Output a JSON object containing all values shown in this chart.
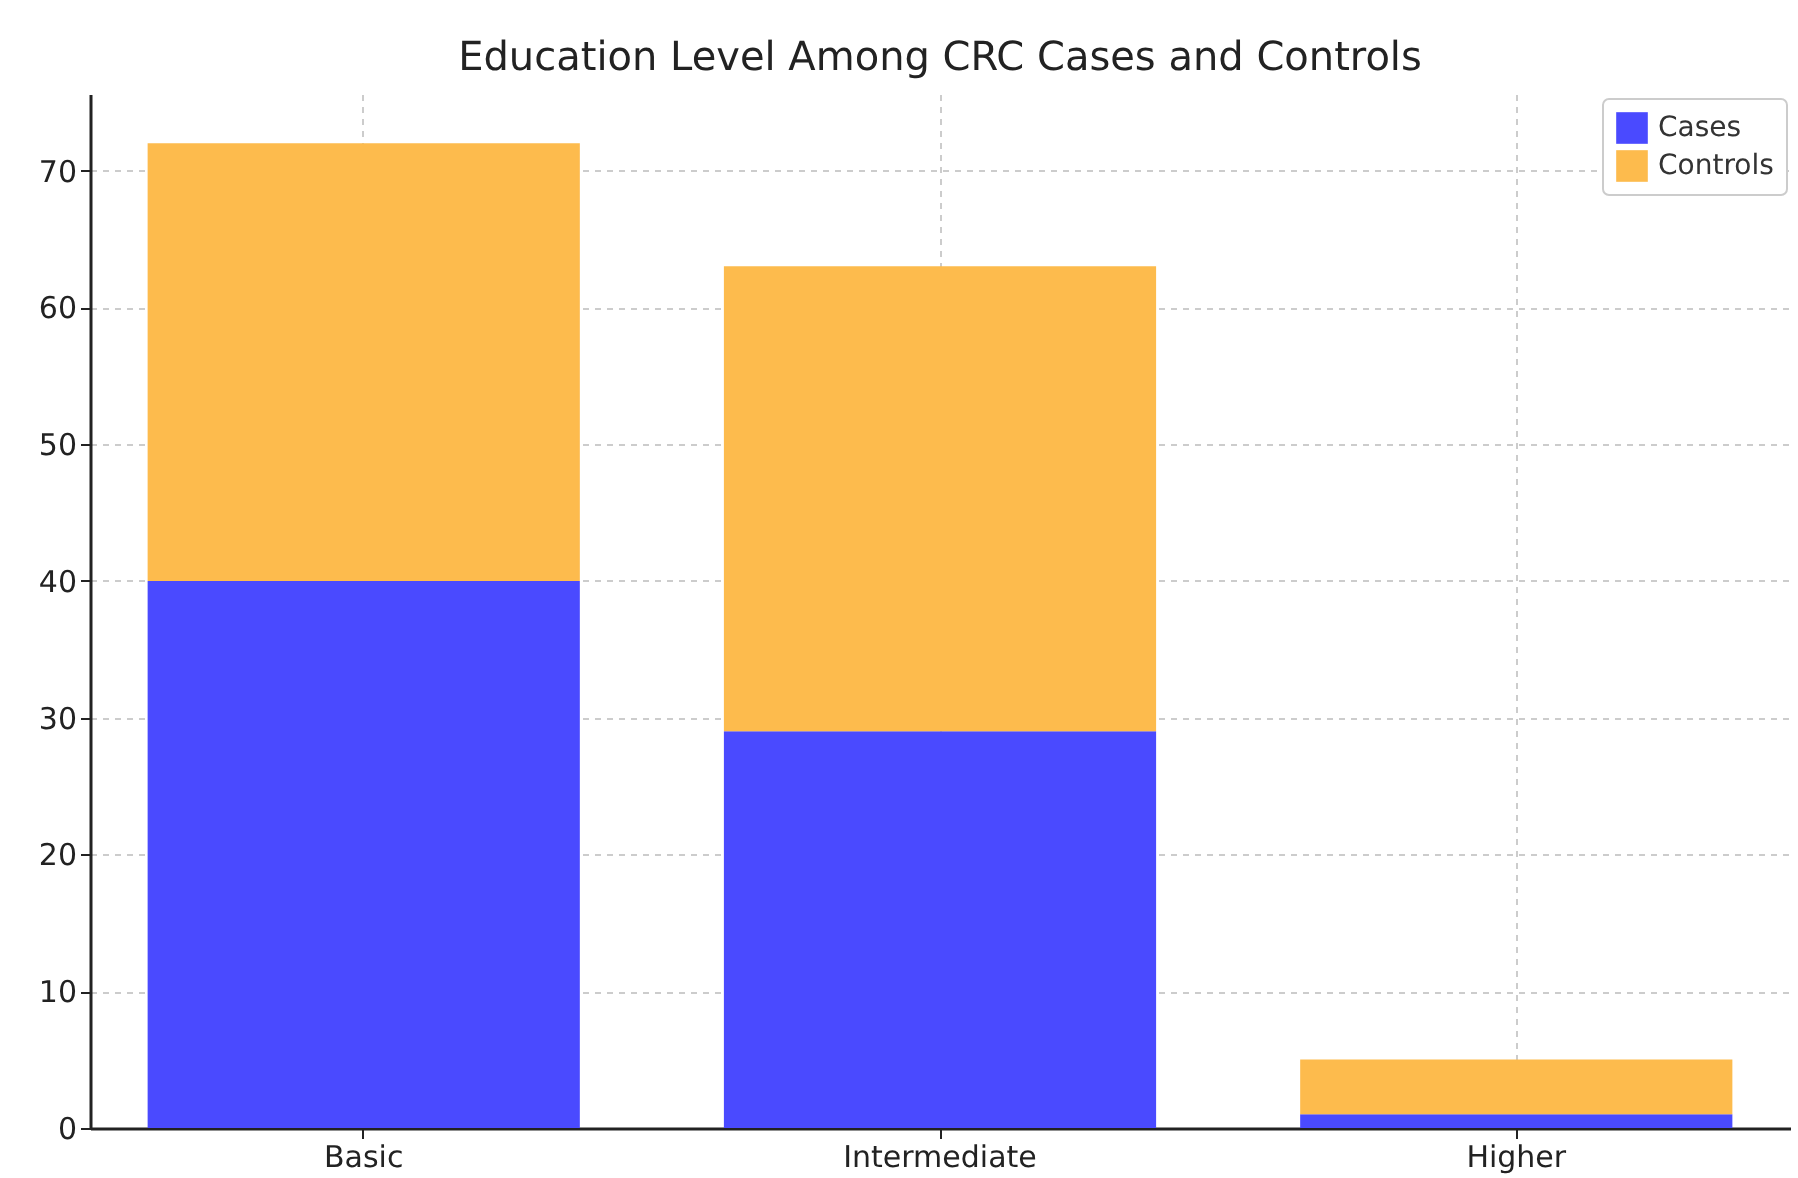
{
  "chart_data": {
    "type": "bar",
    "title": "Education Level Among CRC Cases and Controls",
    "categories": [
      "Basic",
      "Intermediate",
      "Higher"
    ],
    "stacked": true,
    "series": [
      {
        "name": "Cases",
        "color": "#4a4aff",
        "values": [
          40,
          29,
          1
        ]
      },
      {
        "name": "Controls",
        "color": "#fdbb4d",
        "values": [
          32,
          34,
          4
        ]
      }
    ],
    "ylim": [
      0,
      75.6
    ],
    "yticks": [
      0,
      10,
      20,
      30,
      40,
      50,
      60,
      70
    ],
    "grid": true,
    "legend": "top right"
  }
}
